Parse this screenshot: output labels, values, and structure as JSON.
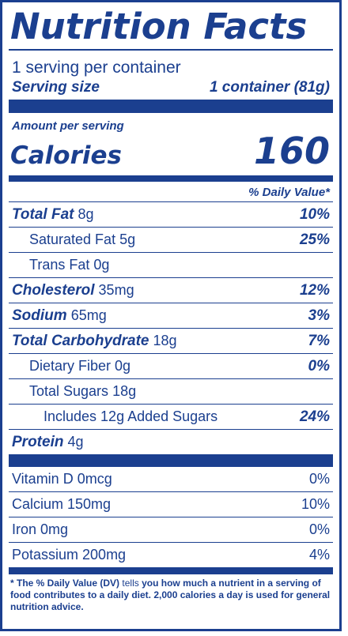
{
  "title": "Nutrition Facts",
  "servings_per_container": "1 serving per container",
  "serving_size_label": "Serving size",
  "serving_size_value": "1 container (81g)",
  "amount_per_serving": "Amount per serving",
  "calories_label": "Calories",
  "calories_value": "160",
  "dv_header": "% Daily Value*",
  "nutrients": [
    {
      "name": "Total Fat",
      "amount": "8g",
      "dv": "10%"
    },
    {
      "name": "Saturated Fat",
      "amount": "5g",
      "dv": "25%"
    },
    {
      "name": "Trans Fat",
      "amount": "0g",
      "dv": ""
    },
    {
      "name": "Cholesterol",
      "amount": "35mg",
      "dv": "12%"
    },
    {
      "name": "Sodium",
      "amount": "65mg",
      "dv": "3%"
    },
    {
      "name": "Total Carbohydrate",
      "amount": "18g",
      "dv": "7%"
    },
    {
      "name": "Dietary Fiber",
      "amount": "0g",
      "dv": "0%"
    },
    {
      "name": "Total Sugars",
      "amount": "18g",
      "dv": ""
    },
    {
      "name": "Includes 12g Added Sugars",
      "amount": "",
      "dv": "24%"
    },
    {
      "name": "Protein",
      "amount": "4g",
      "dv": ""
    }
  ],
  "vitamins": [
    {
      "name": "Vitamin D 0mcg",
      "dv": "0%"
    },
    {
      "name": "Calcium 150mg",
      "dv": "10%"
    },
    {
      "name": "Iron 0mg",
      "dv": "0%"
    },
    {
      "name": "Potassium 200mg",
      "dv": "4%"
    }
  ],
  "footnote_prefix": "* The % Daily Value (DV)",
  "footnote_mid": "tells",
  "footnote_rest": "you how much a nutrient in a serving of food contributes to a daily diet. 2,000 calories a day is used for general nutrition advice.",
  "colors": {
    "ink": "#1b3f8f",
    "background": "#ffffff"
  }
}
